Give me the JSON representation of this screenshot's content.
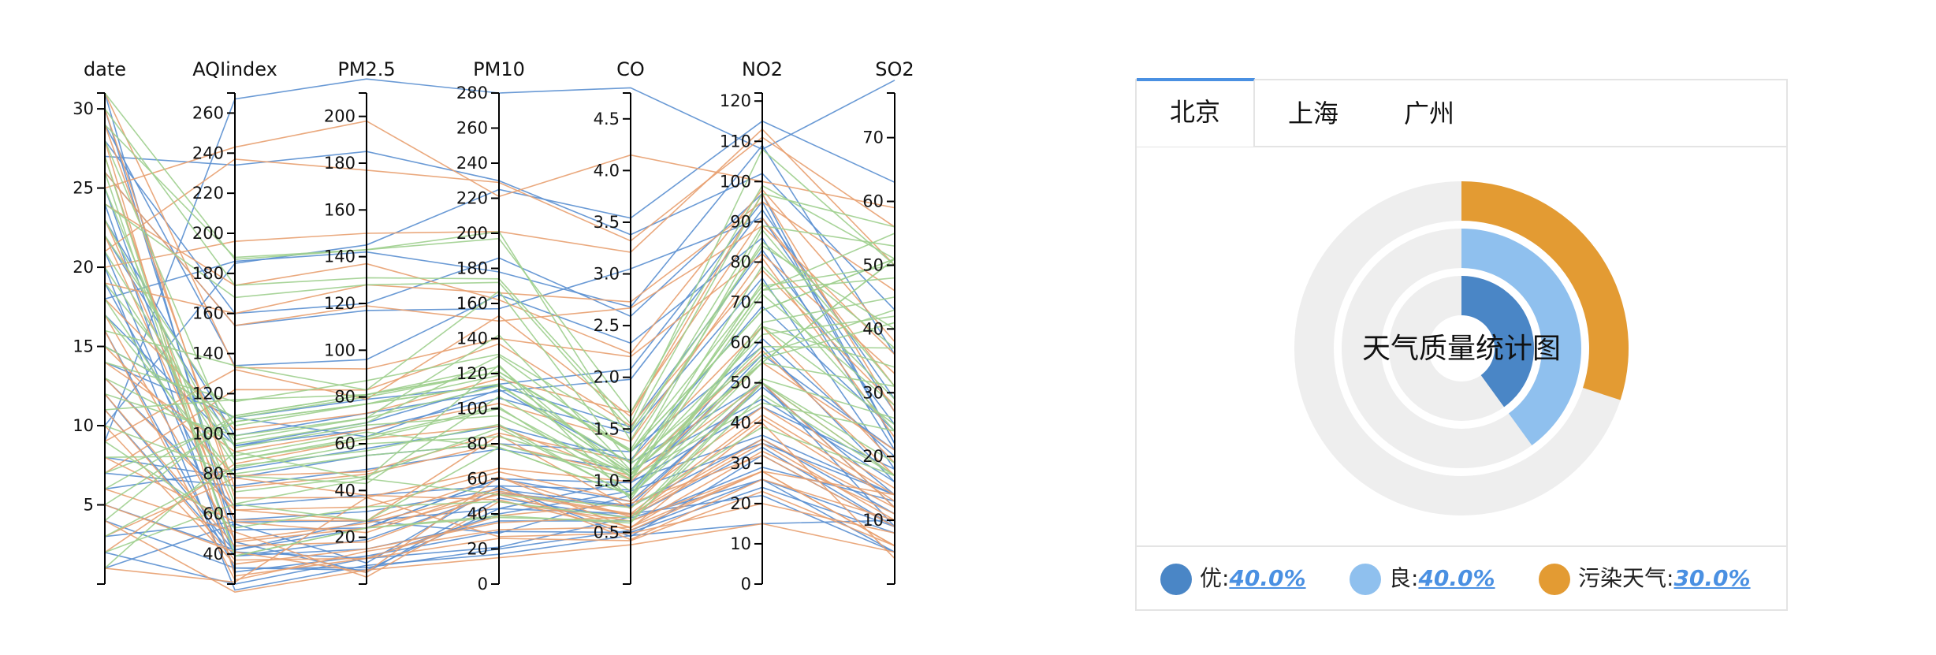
{
  "chart_data": [
    {
      "type": "parallel",
      "axes": [
        {
          "name": "date",
          "min": 0,
          "max": 31,
          "ticks": [
            5,
            10,
            15,
            20,
            25,
            30
          ]
        },
        {
          "name": "AQIindex",
          "min": 25,
          "max": 270,
          "ticks": [
            40,
            60,
            80,
            100,
            120,
            140,
            160,
            180,
            200,
            220,
            240,
            260
          ]
        },
        {
          "name": "PM2.5",
          "min": 0,
          "max": 210,
          "ticks": [
            20,
            40,
            60,
            80,
            100,
            120,
            140,
            160,
            180,
            200
          ]
        },
        {
          "name": "PM10",
          "min": 0,
          "max": 280,
          "ticks": [
            0,
            20,
            40,
            60,
            80,
            100,
            120,
            140,
            160,
            180,
            200,
            220,
            240,
            260,
            280
          ]
        },
        {
          "name": "CO",
          "min": 0,
          "max": 4.75,
          "ticks": [
            "0.5",
            "1.0",
            "1.5",
            "2.0",
            "2.5",
            "3.0",
            "3.5",
            "4.0",
            "4.5"
          ]
        },
        {
          "name": "NO2",
          "min": 0,
          "max": 122,
          "ticks": [
            0,
            10,
            20,
            30,
            40,
            50,
            60,
            70,
            80,
            90,
            100,
            110,
            120
          ]
        },
        {
          "name": "SO2",
          "min": 0,
          "max": 77,
          "ticks": [
            10,
            20,
            30,
            40,
            50,
            60,
            70
          ]
        }
      ],
      "series": [
        {
          "color": "#5a8fd0",
          "rows": [
            [
              1,
              55,
              9,
              56,
              0.46,
              32,
              9
            ],
            [
              2,
              25,
              11,
              21,
              0.65,
              34,
              9
            ],
            [
              3,
              56,
              27,
              29,
              0.86,
              61,
              20
            ],
            [
              4,
              33,
              7,
              20,
              0.52,
              26,
              9
            ],
            [
              5,
              42,
              24,
              60,
              0.8,
              49,
              14
            ],
            [
              6,
              82,
              58,
              90,
              1.2,
              69,
              24
            ],
            [
              7,
              74,
              49,
              77,
              1.1,
              46,
              16
            ],
            [
              8,
              78,
              55,
              80,
              1.28,
              59,
              16
            ],
            [
              9,
              267,
              216,
              280,
              4.8,
              108,
              79
            ],
            [
              10,
              185,
              145,
              225,
              3.54,
              115,
              63
            ],
            [
              11,
              39,
              19,
              52,
              0.75,
              36,
              11
            ],
            [
              12,
              41,
              11,
              40,
              0.9,
              35,
              14
            ],
            [
              13,
              64,
              38,
              56,
              0.91,
              57,
              21
            ],
            [
              14,
              108,
              79,
              113,
              1.52,
              83,
              25
            ],
            [
              15,
              108,
              63,
              111,
              1.17,
              50,
              9
            ],
            [
              16,
              33,
              6,
              43,
              0.68,
              22,
              5
            ],
            [
              17,
              94,
              66,
              106,
              1.46,
              76,
              18
            ],
            [
              18,
              186,
              142,
              178,
              2.68,
              109,
              36
            ],
            [
              19,
              57,
              31,
              54,
              0.76,
              50,
              12
            ],
            [
              20,
              22,
              8,
              17,
              0.47,
              15,
              10
            ],
            [
              21,
              39,
              15,
              36,
              0.61,
              29,
              13
            ],
            [
              22,
              94,
              69,
              114,
              2.08,
              95,
              22
            ],
            [
              23,
              99,
              73,
              110,
              1.98,
              93,
              29
            ],
            [
              24,
              31,
              12,
              30,
              0.5,
              24,
              8
            ],
            [
              25,
              42,
              27,
              43,
              1.0,
              37,
              14
            ],
            [
              26,
              154,
              117,
              157,
              3.05,
              91,
              27
            ],
            [
              27,
              234,
              185,
              230,
              3.38,
              102,
              43
            ],
            [
              28,
              160,
              120,
              186,
              2.59,
              97,
              22
            ],
            [
              29,
              134,
              96,
              165,
              2.33,
              86,
              21
            ],
            [
              30,
              52,
              24,
              60,
              0.98,
              44,
              18
            ],
            [
              31,
              46,
              5,
              49,
              0.64,
              26,
              5
            ]
          ]
        },
        {
          "color": "#e8a070",
          "rows": [
            [
              1,
              26,
              37,
              27,
              0.49,
              20,
              8
            ],
            [
              2,
              85,
              62,
              90,
              1.02,
              50,
              12
            ],
            [
              3,
              78,
              38,
              48,
              0.52,
              28,
              14
            ],
            [
              4,
              21,
              6,
              15,
              0.38,
              15,
              5
            ],
            [
              5,
              41,
              5,
              61,
              0.54,
              40,
              4
            ],
            [
              6,
              51,
              3,
              47,
              0.61,
              28,
              6
            ],
            [
              7,
              122,
              83,
              137,
              1.53,
              78,
              28
            ],
            [
              8,
              56,
              22,
              55,
              0.43,
              26,
              10
            ],
            [
              9,
              132,
              79,
              153,
              1.62,
              97,
              27
            ],
            [
              10,
              35,
              15,
              35,
              0.65,
              35,
              10
            ],
            [
              11,
              37,
              11,
              39,
              0.78,
              32,
              9
            ],
            [
              12,
              44,
              18,
              52,
              0.67,
              36,
              12
            ],
            [
              13,
              62,
              27,
              85,
              0.73,
              50,
              17
            ],
            [
              14,
              91,
              66,
              103,
              1.38,
              81,
              23
            ],
            [
              15,
              79,
              48,
              86,
              1.19,
              64,
              19
            ],
            [
              16,
              27,
              14,
              31,
              0.55,
              28,
              6
            ],
            [
              17,
              47,
              26,
              53,
              0.68,
              42,
              14
            ],
            [
              18,
              102,
              73,
              117,
              1.66,
              91,
              31
            ],
            [
              19,
              160,
              128,
              166,
              2.73,
              95,
              46
            ],
            [
              20,
              196,
              150,
              201,
              3.21,
              113,
              50
            ],
            [
              21,
              237,
              177,
              229,
              3.32,
              111,
              56
            ],
            [
              22,
              57,
              27,
              61,
              0.65,
              41,
              13
            ],
            [
              23,
              62,
              33,
              64,
              0.8,
              44,
              15
            ],
            [
              24,
              174,
              137,
              162,
              2.23,
              98,
              38
            ],
            [
              25,
              243,
              198,
              221,
              4.15,
              100,
              59
            ],
            [
              26,
              154,
              119,
              150,
              2.67,
              89,
              36
            ],
            [
              27,
              46,
              24,
              51,
              0.55,
              33,
              11
            ],
            [
              28,
              29,
              11,
              26,
              0.42,
              23,
              6
            ],
            [
              29,
              73,
              47,
              80,
              1.05,
              58,
              17
            ],
            [
              30,
              68,
              37,
              66,
              0.99,
              55,
              21
            ],
            [
              31,
              133,
              92,
              140,
              2.2,
              82,
              33
            ]
          ]
        },
        {
          "color": "#9fcf8e",
          "rows": [
            [
              1,
              91,
              45,
              125,
              0.82,
              64,
              34
            ],
            [
              2,
              65,
              27,
              78,
              0.86,
              65,
              45
            ],
            [
              3,
              83,
              60,
              84,
              1.09,
              73,
              55
            ],
            [
              4,
              109,
              81,
              121,
              1.28,
              68,
              51
            ],
            [
              5,
              106,
              77,
              114,
              1.07,
              55,
              51
            ],
            [
              6,
              109,
              81,
              121,
              1.28,
              68,
              51
            ],
            [
              7,
              106,
              77,
              114,
              1.07,
              55,
              51
            ],
            [
              8,
              89,
              65,
              78,
              0.86,
              51,
              26
            ],
            [
              9,
              53,
              33,
              47,
              0.64,
              50,
              17
            ],
            [
              10,
              80,
              55,
              80,
              1.01,
              75,
              24
            ],
            [
              11,
              117,
              81,
              124,
              1.03,
              45,
              24
            ],
            [
              12,
              99,
              71,
              142,
              1.1,
              62,
              42
            ],
            [
              13,
              95,
              69,
              130,
              1.28,
              74,
              50
            ],
            [
              14,
              116,
              87,
              131,
              1.47,
              84,
              40
            ],
            [
              15,
              108,
              80,
              121,
              1.3,
              85,
              37
            ],
            [
              16,
              134,
              83,
              167,
              1.16,
              57,
              43
            ],
            [
              17,
              79,
              43,
              107,
              1.05,
              59,
              37
            ],
            [
              18,
              71,
              46,
              89,
              0.86,
              64,
              25
            ],
            [
              19,
              97,
              71,
              113,
              1.17,
              88,
              31
            ],
            [
              20,
              84,
              57,
              91,
              0.85,
              55,
              31
            ],
            [
              21,
              87,
              63,
              101,
              0.9,
              56,
              41
            ],
            [
              22,
              104,
              77,
              119,
              1.09,
              73,
              48
            ],
            [
              23,
              87,
              62,
              100,
              1.0,
              72,
              28
            ],
            [
              24,
              168,
              128,
              172,
              1.49,
              97,
              56
            ],
            [
              25,
              65,
              45,
              51,
              0.74,
              39,
              17
            ],
            [
              26,
              39,
              24,
              38,
              0.61,
              47,
              17
            ],
            [
              27,
              39,
              24,
              39,
              0.59,
              50,
              19
            ],
            [
              28,
              93,
              68,
              96,
              1.05,
              79,
              29
            ],
            [
              29,
              188,
              143,
              197,
              1.66,
              99,
              51
            ],
            [
              30,
              174,
              131,
              174,
              1.55,
              108,
              50
            ],
            [
              31,
              187,
              143,
              201,
              1.39,
              89,
              53
            ]
          ]
        }
      ]
    },
    {
      "type": "pie",
      "title": "天气质量统计图",
      "series": [
        {
          "name": "优",
          "value": 40.0,
          "color": "#4a86c6"
        },
        {
          "name": "良",
          "value": 40.0,
          "color": "#8fc0ee"
        },
        {
          "name": "污染天气",
          "value": 30.0,
          "color": "#e39b33"
        }
      ],
      "track_color": "#eeeeee"
    }
  ],
  "tabs": [
    {
      "label": "北京",
      "active": true
    },
    {
      "label": "上海",
      "active": false
    },
    {
      "label": "广州",
      "active": false
    }
  ],
  "legend": [
    {
      "label": "优:",
      "pct": "40.0%",
      "color": "#4a86c6"
    },
    {
      "label": "良:",
      "pct": "40.0%",
      "color": "#8fc0ee"
    },
    {
      "label": "污染天气:",
      "pct": "30.0%",
      "color": "#e39b33"
    }
  ]
}
